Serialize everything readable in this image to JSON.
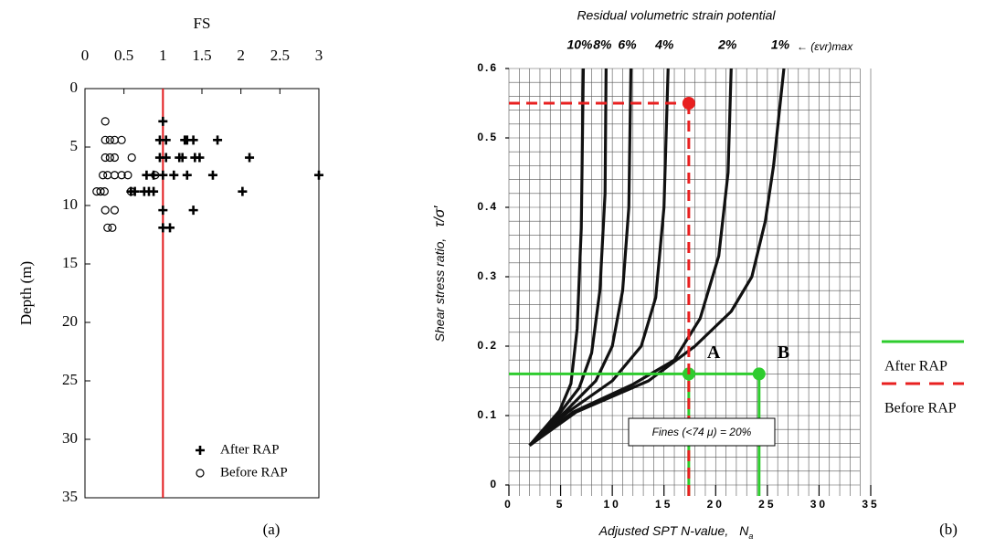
{
  "chart_data": [
    {
      "type": "scatter",
      "xlabel": "FS",
      "ylabel": "Depth (m)",
      "panel_label": "(a)",
      "xlim": [
        0,
        3
      ],
      "ylim": [
        0,
        35
      ],
      "y_inverted": true,
      "xticks": [
        0,
        0.5,
        1,
        1.5,
        2,
        2.5,
        3
      ],
      "yticks": [
        0,
        5,
        10,
        15,
        20,
        25,
        30,
        35
      ],
      "ref_x": 1,
      "ref_color": "#e31a1c",
      "legend": "lower right",
      "series": [
        {
          "name": "After RAP",
          "marker": "plus",
          "color": "#000000",
          "x": [
            1.0,
            0.96,
            1.04,
            1.28,
            1.31,
            1.39,
            1.7,
            0.96,
            1.04,
            1.21,
            1.25,
            1.41,
            1.47,
            2.11,
            0.79,
            0.88,
            1.0,
            1.14,
            1.31,
            1.64,
            3.0,
            0.59,
            0.64,
            0.76,
            0.82,
            0.88,
            2.02,
            1.0,
            1.39,
            1.0,
            1.09
          ],
          "y": [
            2.8,
            4.4,
            4.4,
            4.4,
            4.4,
            4.4,
            4.4,
            5.9,
            5.9,
            5.9,
            5.9,
            5.9,
            5.9,
            5.9,
            7.4,
            7.4,
            7.4,
            7.4,
            7.4,
            7.4,
            7.4,
            8.8,
            8.8,
            8.8,
            8.8,
            8.8,
            8.8,
            10.4,
            10.4,
            11.9,
            11.9
          ]
        },
        {
          "name": "Before RAP",
          "marker": "circle",
          "color": "#000000",
          "x": [
            0.26,
            0.26,
            0.32,
            0.38,
            0.47,
            0.26,
            0.32,
            0.38,
            0.6,
            0.23,
            0.29,
            0.38,
            0.47,
            0.55,
            0.9,
            0.15,
            0.2,
            0.25,
            0.59,
            0.26,
            0.38,
            0.29,
            0.35
          ],
          "y": [
            2.8,
            4.4,
            4.4,
            4.4,
            4.4,
            5.9,
            5.9,
            5.9,
            5.9,
            7.4,
            7.4,
            7.4,
            7.4,
            7.4,
            7.4,
            8.8,
            8.8,
            8.8,
            8.8,
            10.4,
            10.4,
            11.9,
            11.9
          ]
        }
      ]
    },
    {
      "type": "line",
      "title": "Residual volumetric strain potential",
      "xlabel": "Adjusted SPT N-value,",
      "xlabel_symbol": "N",
      "xlabel_sub": "a",
      "ylabel": "Shear stress ratio,",
      "ylabel_symbol": "τ/σ′",
      "panel_label": "(b)",
      "series_note": "← (εvr)max",
      "xlim": [
        0,
        35
      ],
      "ylim": [
        0,
        0.6
      ],
      "xticks": [
        0,
        5,
        10,
        15,
        20,
        25,
        30,
        35
      ],
      "yticks": [
        0,
        0.1,
        0.2,
        0.3,
        0.4,
        0.5,
        0.6
      ],
      "grid": true,
      "xgrid_step": 1,
      "ygrid_step": 0.02,
      "series": [
        {
          "name": "10%",
          "color": "#111111",
          "x": [
            2.0,
            4.9,
            6.0,
            6.6,
            7.0,
            7.2
          ],
          "y": [
            0.057,
            0.107,
            0.146,
            0.225,
            0.37,
            0.6
          ]
        },
        {
          "name": "8%",
          "color": "#111111",
          "x": [
            2.0,
            5.0,
            6.8,
            8.0,
            8.8,
            9.3,
            9.4
          ],
          "y": [
            0.057,
            0.105,
            0.14,
            0.19,
            0.28,
            0.42,
            0.6
          ]
        },
        {
          "name": "6%",
          "color": "#111111",
          "x": [
            2.0,
            5.4,
            8.4,
            10.0,
            11.0,
            11.6,
            11.8
          ],
          "y": [
            0.057,
            0.105,
            0.15,
            0.2,
            0.28,
            0.4,
            0.6
          ]
        },
        {
          "name": "4%",
          "color": "#111111",
          "x": [
            2.0,
            5.7,
            10.0,
            12.8,
            14.2,
            15.0,
            15.4
          ],
          "y": [
            0.057,
            0.105,
            0.15,
            0.2,
            0.27,
            0.4,
            0.6
          ]
        },
        {
          "name": "2%",
          "color": "#111111",
          "x": [
            2.0,
            6.2,
            12.0,
            16.0,
            18.5,
            20.3,
            21.2,
            21.5
          ],
          "y": [
            0.057,
            0.105,
            0.145,
            0.18,
            0.24,
            0.33,
            0.45,
            0.6
          ]
        },
        {
          "name": "1%",
          "color": "#111111",
          "x": [
            2.0,
            6.5,
            13.5,
            18.0,
            21.5,
            23.5,
            24.8,
            25.6,
            26.6
          ],
          "y": [
            0.057,
            0.105,
            0.15,
            0.2,
            0.25,
            0.3,
            0.38,
            0.46,
            0.6
          ]
        }
      ],
      "cases": [
        {
          "name": "After RAP",
          "color": "#2ecc2e",
          "dashed": false,
          "level": 0.16,
          "points": [
            {
              "label": "A",
              "x": 17.4
            },
            {
              "label": "B",
              "x": 24.2
            }
          ]
        },
        {
          "name": "Before RAP",
          "color": "#e82020",
          "dashed": true,
          "level": 0.55,
          "points": [
            {
              "x": 17.4
            }
          ]
        }
      ],
      "note": "Fines (<74 μ) = 20%"
    }
  ]
}
